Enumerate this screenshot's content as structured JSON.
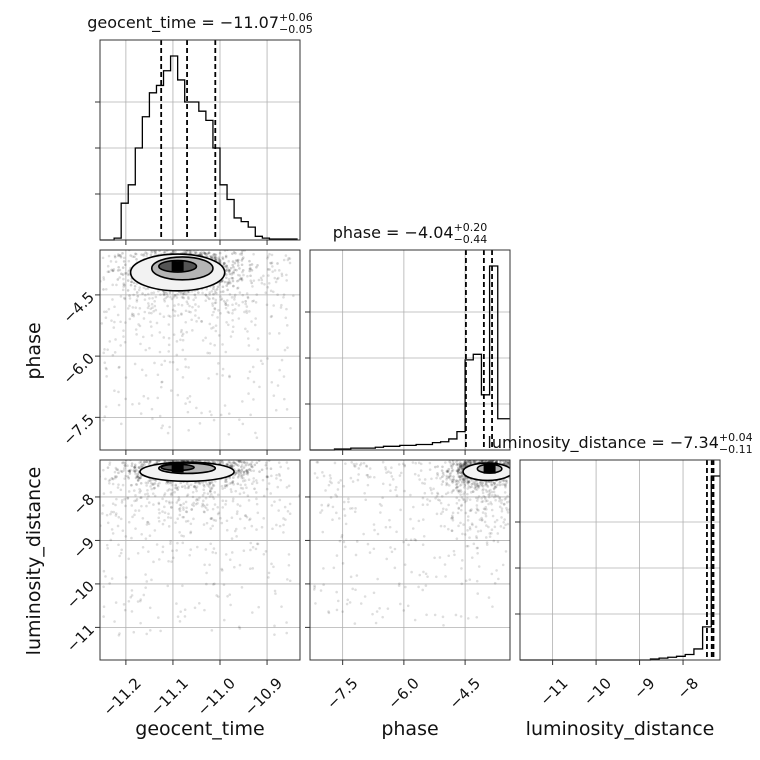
{
  "chart_data": {
    "type": "corner",
    "parameters": [
      "geocent_time",
      "phase",
      "luminosity_distance"
    ],
    "axis_labels": [
      "geocent_time",
      "phase",
      "luminosity_distance"
    ],
    "grid": true,
    "ranges": {
      "geocent_time": [
        -11.255,
        -10.83
      ],
      "phase": [
        -8.3,
        -3.4
      ],
      "luminosity_distance": [
        -11.75,
        -7.15
      ]
    },
    "ticks": {
      "geocent_time": [
        "−11.2",
        "−11.1",
        "−11.0",
        "−10.9"
      ],
      "phase": [
        "−7.5",
        "−6.0",
        "−4.5"
      ],
      "luminosity_distance": [
        "−11",
        "−10",
        "−9",
        "−8"
      ]
    },
    "tick_values": {
      "geocent_time": [
        -11.2,
        -11.1,
        -11.0,
        -10.9
      ],
      "phase": [
        -7.5,
        -6.0,
        -4.5
      ],
      "luminosity_distance": [
        -11,
        -10,
        -9,
        -8
      ]
    },
    "titles": [
      {
        "param": "geocent_time",
        "text": "geocent_time = −11.07",
        "median": -11.07,
        "plus": "+0.06",
        "minus": "−0.05"
      },
      {
        "param": "phase",
        "text": "phase = −4.04",
        "median": -4.04,
        "plus": "+0.20",
        "minus": "−0.44"
      },
      {
        "param": "luminosity_distance",
        "text": "luminosity_distance = −7.34",
        "median": -7.34,
        "plus": "+0.04",
        "minus": "−0.11"
      }
    ],
    "quantile_lines": {
      "geocent_time": [
        -11.125,
        -11.07,
        -11.01
      ],
      "phase": [
        -4.48,
        -4.04,
        -3.84
      ],
      "luminosity_distance": [
        -7.45,
        -7.34,
        -7.3
      ]
    },
    "histograms": {
      "geocent_time": {
        "edges": [
          -11.255,
          -11.24,
          -11.225,
          -11.21,
          -11.195,
          -11.18,
          -11.165,
          -11.15,
          -11.135,
          -11.12,
          -11.105,
          -11.09,
          -11.075,
          -11.06,
          -11.045,
          -11.03,
          -11.015,
          -11.0,
          -10.985,
          -10.97,
          -10.955,
          -10.94,
          -10.925,
          -10.91,
          -10.895,
          -10.88,
          -10.865,
          -10.85,
          -10.835
        ],
        "counts": [
          0.0,
          0.0,
          0.01,
          0.2,
          0.3,
          0.5,
          0.67,
          0.8,
          0.84,
          0.92,
          1.0,
          0.87,
          0.75,
          0.75,
          0.7,
          0.65,
          0.5,
          0.3,
          0.22,
          0.12,
          0.1,
          0.07,
          0.02,
          0.01,
          0.005,
          0.005,
          0.005,
          0.005
        ]
      },
      "phase": {
        "edges": [
          -8.3,
          -8.1,
          -7.9,
          -7.7,
          -7.5,
          -7.3,
          -7.1,
          -6.9,
          -6.7,
          -6.5,
          -6.3,
          -6.1,
          -5.9,
          -5.7,
          -5.5,
          -5.3,
          -5.1,
          -4.9,
          -4.7,
          -4.5,
          -4.3,
          -4.1,
          -3.9,
          -3.7,
          -3.5,
          -3.4
        ],
        "counts": [
          0.0,
          0.0,
          0.0,
          0.005,
          0.005,
          0.01,
          0.01,
          0.01,
          0.015,
          0.02,
          0.02,
          0.025,
          0.025,
          0.03,
          0.03,
          0.04,
          0.045,
          0.06,
          0.1,
          0.49,
          0.52,
          0.3,
          1.0,
          0.17,
          0.17
        ]
      },
      "luminosity_distance": {
        "edges": [
          -11.75,
          -11.55,
          -11.35,
          -11.15,
          -10.95,
          -10.75,
          -10.55,
          -10.35,
          -10.15,
          -9.95,
          -9.75,
          -9.55,
          -9.35,
          -9.15,
          -8.95,
          -8.75,
          -8.55,
          -8.35,
          -8.15,
          -7.95,
          -7.75,
          -7.55,
          -7.35,
          -7.15
        ],
        "counts": [
          0.0,
          0.0,
          0.0,
          0.0,
          0.0,
          0.0,
          0.0,
          0.0,
          0.0,
          0.0,
          0.0,
          0.0,
          0.0,
          0.0,
          0.0,
          0.005,
          0.01,
          0.015,
          0.02,
          0.03,
          0.06,
          0.18,
          1.0
        ]
      }
    },
    "density": [
      {
        "pair": [
          "geocent_time",
          "phase"
        ],
        "core": {
          "center": [
            -11.07,
            -3.85
          ],
          "spread": [
            0.06,
            0.28
          ]
        },
        "scatter_region": {
          "x": [
            -11.25,
            -10.85
          ],
          "y": [
            -8.0,
            -3.5
          ]
        },
        "contours": [
          {
            "center": [
              -11.09,
              -3.95
            ],
            "radius": [
              0.1,
              0.45
            ]
          },
          {
            "center": [
              -11.08,
              -3.85
            ],
            "radius": [
              0.065,
              0.28
            ]
          },
          {
            "center": [
              -11.09,
              -3.8
            ],
            "radius": [
              0.04,
              0.14
            ]
          }
        ]
      },
      {
        "pair": [
          "geocent_time",
          "luminosity_distance"
        ],
        "core": {
          "center": [
            -11.07,
            -7.35
          ],
          "spread": [
            0.06,
            0.15
          ]
        },
        "scatter_region": {
          "x": [
            -11.25,
            -10.85
          ],
          "y": [
            -11.2,
            -7.2
          ]
        },
        "contours": [
          {
            "center": [
              -11.07,
              -7.42
            ],
            "radius": [
              0.1,
              0.22
            ]
          },
          {
            "center": [
              -11.07,
              -7.34
            ],
            "radius": [
              0.06,
              0.12
            ]
          },
          {
            "center": [
              -11.09,
              -7.32
            ],
            "radius": [
              0.035,
              0.07
            ]
          }
        ]
      },
      {
        "pair": [
          "phase",
          "luminosity_distance"
        ],
        "core": {
          "center": [
            -4.0,
            -7.35
          ],
          "spread": [
            0.4,
            0.15
          ]
        },
        "scatter_region": {
          "x": [
            -8.2,
            -3.45
          ],
          "y": [
            -11.0,
            -7.2
          ]
        },
        "contours": [
          {
            "center": [
              -3.95,
              -7.42
            ],
            "radius": [
              0.6,
              0.2
            ]
          },
          {
            "center": [
              -3.9,
              -7.35
            ],
            "radius": [
              0.3,
              0.1
            ]
          }
        ]
      }
    ]
  }
}
